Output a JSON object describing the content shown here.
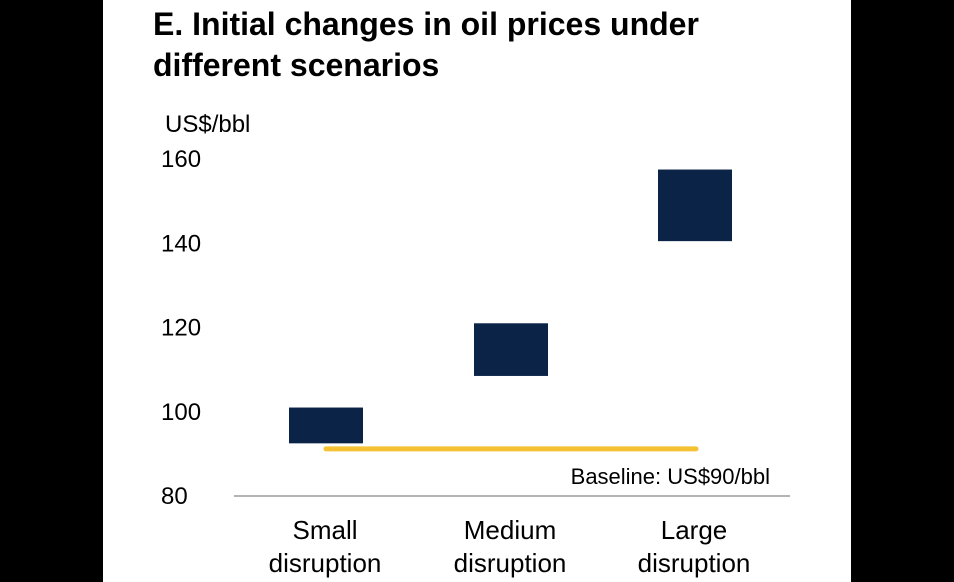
{
  "chart_data": {
    "type": "bar",
    "title": "E. Initial changes in oil prices under different scenarios",
    "ylabel": "US$/bbl",
    "ylim": [
      80,
      160
    ],
    "yticks": [
      80,
      100,
      120,
      140,
      160
    ],
    "categories": [
      [
        "Small",
        "disruption"
      ],
      [
        "Medium",
        "disruption"
      ],
      [
        "Large",
        "disruption"
      ]
    ],
    "ranges": [
      {
        "low": 92.5,
        "high": 101
      },
      {
        "low": 108.5,
        "high": 121
      },
      {
        "low": 140.5,
        "high": 157.5
      }
    ],
    "baseline": {
      "value": 90,
      "label": "Baseline: US$90/bbl"
    },
    "grid": false,
    "colors": {
      "bar": "#0b2347",
      "baseline": "#f5c234",
      "axis": "#888888"
    }
  }
}
